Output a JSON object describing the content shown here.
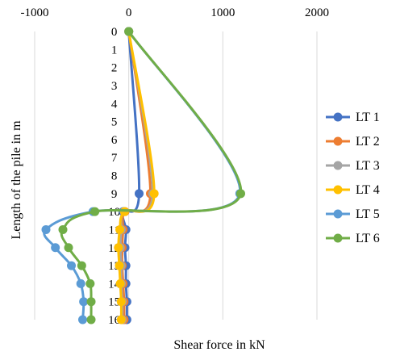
{
  "chart_data": {
    "type": "line",
    "orientation": "horizontal-values",
    "title": "",
    "xlabel": "Shear force in kN",
    "ylabel": "Length of the pile in m",
    "xlim": [
      -1000,
      2000
    ],
    "x_ticks": [
      -1000,
      0,
      1000,
      2000
    ],
    "x_tick_labels": [
      "-1000",
      "0",
      "1000",
      "2000"
    ],
    "x_axis_position": "top",
    "ylim": [
      0,
      16
    ],
    "y_reversed": true,
    "y_ticks": [
      0,
      1,
      2,
      3,
      4,
      5,
      6,
      7,
      8,
      9,
      10,
      11,
      12,
      13,
      14,
      15,
      16
    ],
    "y_tick_labels": [
      "0",
      "1",
      "2",
      "3",
      "4",
      "5",
      "6",
      "7",
      "8",
      "9",
      "10",
      "11",
      "12",
      "13",
      "14",
      "15",
      "16"
    ],
    "grid": "vertical",
    "legend": "right",
    "depths": [
      0,
      9,
      10,
      11,
      12,
      13,
      14,
      15,
      16
    ],
    "series": [
      {
        "name": "LT 1",
        "color": "#4472C4",
        "values": [
          0,
          110,
          -60,
          -30,
          -40,
          -30,
          -30,
          -20,
          -20
        ]
      },
      {
        "name": "LT 2",
        "color": "#ED7D31",
        "values": [
          0,
          230,
          -40,
          -60,
          -70,
          -70,
          -60,
          -50,
          -50
        ]
      },
      {
        "name": "LT 3",
        "color": "#A5A5A5",
        "values": [
          0,
          255,
          -50,
          -80,
          -90,
          -80,
          -80,
          -70,
          -70
        ]
      },
      {
        "name": "LT 4",
        "color": "#FFC000",
        "values": [
          0,
          270,
          -45,
          -95,
          -110,
          -100,
          -90,
          -80,
          -80
        ]
      },
      {
        "name": "LT 5",
        "color": "#5B9BD5",
        "values": [
          0,
          1180,
          -380,
          -880,
          -780,
          -610,
          -510,
          -480,
          -490
        ]
      },
      {
        "name": "LT 6",
        "color": "#70AD47",
        "values": [
          0,
          1190,
          -360,
          -700,
          -640,
          -500,
          -410,
          -400,
          -400
        ]
      }
    ]
  }
}
